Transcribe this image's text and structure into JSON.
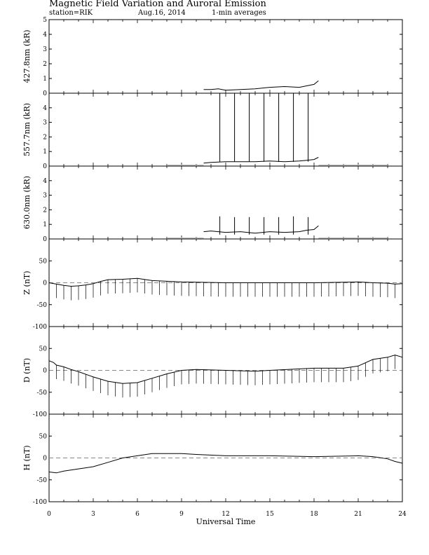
{
  "header": {
    "title": "Magnetic Field Variation and Auroral Emission",
    "station": "station=RIK",
    "date": "Aug.16, 2014",
    "averaging": "1-min averages"
  },
  "colors": {
    "line": "#000000",
    "grid_dash": "#888888",
    "gap_fill": "#c0c0c0"
  },
  "chart_data": [
    {
      "type": "line",
      "ylabel": "427.8nm (kR)",
      "ylim": [
        0,
        5
      ],
      "yticks": [
        "0",
        "1",
        "2",
        "3",
        "4",
        "5"
      ],
      "xlim": [
        0,
        24
      ],
      "grid": false,
      "series": [
        {
          "x": [
            10.5,
            11,
            11.5,
            12,
            13,
            14,
            15,
            16,
            17,
            17.5,
            18,
            18.3
          ],
          "values": [
            0.25,
            0.25,
            0.3,
            0.2,
            0.25,
            0.3,
            0.4,
            0.45,
            0.4,
            0.5,
            0.6,
            0.85
          ]
        }
      ],
      "gap_bars": []
    },
    {
      "type": "line",
      "ylabel": "557.7nm (kR)",
      "ylim": [
        0,
        5
      ],
      "yticks": [
        "0",
        "1",
        "2",
        "3",
        "4"
      ],
      "xlim": [
        0,
        24
      ],
      "grid": false,
      "series": [
        {
          "x": [
            10.5,
            11,
            12,
            13,
            14,
            15,
            16,
            17,
            17.5,
            18,
            18.3
          ],
          "values": [
            0.2,
            0.25,
            0.3,
            0.3,
            0.3,
            0.35,
            0.3,
            0.35,
            0.4,
            0.45,
            0.6
          ]
        }
      ],
      "spikes": [
        {
          "x": 11.6,
          "value": 5
        },
        {
          "x": 12.6,
          "value": 5
        },
        {
          "x": 13.6,
          "value": 5
        },
        {
          "x": 14.6,
          "value": 5
        },
        {
          "x": 15.6,
          "value": 5
        },
        {
          "x": 16.6,
          "value": 5
        },
        {
          "x": 17.6,
          "value": 5
        }
      ],
      "gap_bars": [
        {
          "start": 8,
          "end": 10.5,
          "value": 0.1
        },
        {
          "start": 18.3,
          "end": 23,
          "value": 0.1
        }
      ]
    },
    {
      "type": "line",
      "ylabel": "630.0nm (kR)",
      "ylim": [
        0,
        5
      ],
      "yticks": [
        "0",
        "1",
        "2",
        "3",
        "4"
      ],
      "xlim": [
        0,
        24
      ],
      "grid": false,
      "series": [
        {
          "x": [
            10.5,
            11,
            11.5,
            12,
            13,
            14,
            15,
            16,
            17,
            17.5,
            18,
            18.3
          ],
          "values": [
            0.5,
            0.55,
            0.5,
            0.45,
            0.5,
            0.4,
            0.5,
            0.45,
            0.5,
            0.6,
            0.65,
            0.9
          ]
        }
      ],
      "spikes": [
        {
          "x": 11.6,
          "value": 1.55
        },
        {
          "x": 12.6,
          "value": 1.5
        },
        {
          "x": 13.6,
          "value": 1.5
        },
        {
          "x": 14.6,
          "value": 1.5
        },
        {
          "x": 15.6,
          "value": 1.5
        },
        {
          "x": 16.6,
          "value": 1.55
        },
        {
          "x": 17.6,
          "value": 1.5
        }
      ],
      "gap_bars": [
        {
          "start": 8,
          "end": 10.5,
          "value": 0.1
        },
        {
          "start": 18.3,
          "end": 23,
          "value": 0.1
        }
      ]
    },
    {
      "type": "line",
      "ylabel": "Z (nT)",
      "ylim": [
        -100,
        100
      ],
      "yticks": [
        "-100",
        "-50",
        "0",
        "50"
      ],
      "xlim": [
        0,
        24
      ],
      "baseline_dashed": true,
      "series": [
        {
          "x": [
            0,
            0.5,
            1,
            1.5,
            2,
            2.5,
            3,
            3.5,
            4,
            5,
            6,
            7,
            9,
            12,
            15,
            18,
            21,
            22,
            23,
            23.5,
            24
          ],
          "values": [
            0,
            -3,
            -6,
            -8,
            -7,
            -5,
            -2,
            3,
            7,
            8,
            10,
            5,
            2,
            0,
            0,
            0,
            2,
            0,
            -1,
            -3,
            -2
          ]
        }
      ],
      "tick_every": 0.5,
      "tick_length": -20
    },
    {
      "type": "line",
      "ylabel": "D (nT)",
      "ylim": [
        -100,
        100
      ],
      "yticks": [
        "-100",
        "-50",
        "0",
        "50"
      ],
      "xlim": [
        0,
        24
      ],
      "baseline_dashed": true,
      "series": [
        {
          "x": [
            0,
            0.3,
            0.5,
            1,
            1.5,
            2,
            3,
            4,
            5,
            6,
            7,
            8,
            9,
            10,
            12,
            14,
            15,
            18,
            20,
            21,
            22,
            23,
            23.5,
            24
          ],
          "values": [
            22,
            18,
            12,
            8,
            2,
            -3,
            -15,
            -25,
            -30,
            -28,
            -18,
            -8,
            0,
            2,
            0,
            -2,
            0,
            5,
            5,
            10,
            25,
            30,
            35,
            30
          ]
        }
      ],
      "tick_every": 0.5,
      "tick_length": -20
    },
    {
      "type": "line",
      "ylabel": "H (nT)",
      "ylim": [
        -100,
        100
      ],
      "yticks": [
        "-100",
        "-50",
        "0",
        "50"
      ],
      "xlim": [
        0,
        24
      ],
      "baseline_dashed": true,
      "series": [
        {
          "x": [
            0,
            0.5,
            1,
            2,
            3,
            4,
            5,
            6,
            7,
            8,
            9,
            10,
            12,
            15,
            18,
            21,
            22,
            23,
            23.5,
            24
          ],
          "values": [
            -32,
            -34,
            -30,
            -25,
            -20,
            -10,
            0,
            5,
            10,
            10,
            10,
            8,
            5,
            5,
            3,
            5,
            3,
            -2,
            -8,
            -12
          ]
        }
      ]
    }
  ],
  "x_axis": {
    "title": "Universal Time",
    "ticks": [
      "0",
      "3",
      "6",
      "9",
      "12",
      "15",
      "18",
      "21",
      "24"
    ],
    "range": [
      0,
      24
    ]
  }
}
